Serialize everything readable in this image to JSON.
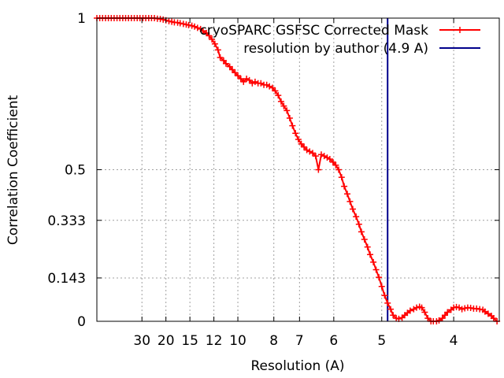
{
  "chart_data": {
    "type": "line",
    "xlabel": "Resolution (A)",
    "ylabel": "Correlation Coefficient",
    "x_scale": "reciprocal",
    "xlim": [
      500,
      3.55
    ],
    "ylim": [
      0,
      1
    ],
    "x_ticks": [
      {
        "value": 30,
        "label": "30"
      },
      {
        "value": 20,
        "label": "20"
      },
      {
        "value": 15,
        "label": "15"
      },
      {
        "value": 12,
        "label": "12"
      },
      {
        "value": 10,
        "label": "10"
      },
      {
        "value": 8,
        "label": "8"
      },
      {
        "value": 7,
        "label": "7"
      },
      {
        "value": 6,
        "label": "6"
      },
      {
        "value": 5,
        "label": "5"
      },
      {
        "value": 4,
        "label": "4"
      }
    ],
    "y_ticks": [
      {
        "value": 0,
        "label": "0"
      },
      {
        "value": 0.143,
        "label": "0.143"
      },
      {
        "value": 0.333,
        "label": "0.333"
      },
      {
        "value": 0.5,
        "label": "0.5"
      },
      {
        "value": 1,
        "label": "1"
      }
    ],
    "grid": true,
    "legend_position": "top-right",
    "series": [
      {
        "name": "cryoSPARC GSFSC Corrected Mask",
        "color": "#ff0000",
        "marker": "plus",
        "x": [
          500,
          250,
          166.7,
          125,
          100,
          83.3,
          71.4,
          62.5,
          55.6,
          50,
          45.5,
          41.7,
          38.5,
          35.7,
          33.3,
          31.3,
          29.4,
          27.8,
          26.3,
          25,
          23.8,
          22.7,
          21.7,
          20.8,
          20,
          19.2,
          18.5,
          17.9,
          17.2,
          16.7,
          16.1,
          15.6,
          15.2,
          14.7,
          14.3,
          13.9,
          13.5,
          13.2,
          12.8,
          12.5,
          12.2,
          11.9,
          11.6,
          11.4,
          11.1,
          10.9,
          10.6,
          10.4,
          10.2,
          10,
          9.8,
          9.62,
          9.43,
          9.26,
          9.09,
          8.93,
          8.77,
          8.62,
          8.47,
          8.33,
          8.2,
          8.06,
          7.94,
          7.81,
          7.69,
          7.58,
          7.46,
          7.35,
          7.25,
          7.14,
          7.04,
          6.94,
          6.85,
          6.76,
          6.67,
          6.58,
          6.49,
          6.41,
          6.33,
          6.25,
          6.17,
          6.1,
          6.02,
          5.95,
          5.88,
          5.81,
          5.75,
          5.68,
          5.62,
          5.56,
          5.49,
          5.43,
          5.38,
          5.32,
          5.26,
          5.21,
          5.15,
          5.1,
          5.05,
          5,
          4.95,
          4.9,
          4.85,
          4.81,
          4.76,
          4.72,
          4.67,
          4.63,
          4.59,
          4.55,
          4.5,
          4.46,
          4.42,
          4.39,
          4.35,
          4.31,
          4.27,
          4.24,
          4.2,
          4.17,
          4.13,
          4.1,
          4.07,
          4.03,
          4,
          3.97,
          3.94,
          3.91,
          3.88,
          3.85,
          3.82,
          3.79,
          3.76,
          3.73,
          3.7,
          3.68,
          3.65,
          3.62,
          3.6,
          3.57
        ],
        "y": [
          1.0,
          1.0,
          1.0,
          1.0,
          1.0,
          1.0,
          1.0,
          1.0,
          1.0,
          1.0,
          1.0,
          1.0,
          1.0,
          1.0,
          1.0,
          1.0,
          1.0,
          1.0,
          1.0,
          1.0,
          1.0,
          0.998,
          0.997,
          0.995,
          0.993,
          0.99,
          0.988,
          0.986,
          0.985,
          0.983,
          0.981,
          0.979,
          0.977,
          0.975,
          0.972,
          0.968,
          0.964,
          0.958,
          0.951,
          0.942,
          0.93,
          0.915,
          0.895,
          0.87,
          0.86,
          0.85,
          0.84,
          0.83,
          0.82,
          0.81,
          0.8,
          0.79,
          0.8,
          0.795,
          0.785,
          0.79,
          0.785,
          0.785,
          0.78,
          0.78,
          0.775,
          0.77,
          0.76,
          0.745,
          0.725,
          0.71,
          0.695,
          0.67,
          0.645,
          0.62,
          0.6,
          0.585,
          0.575,
          0.565,
          0.56,
          0.555,
          0.545,
          0.5,
          0.55,
          0.545,
          0.54,
          0.535,
          0.525,
          0.515,
          0.5,
          0.475,
          0.445,
          0.42,
          0.395,
          0.37,
          0.345,
          0.32,
          0.295,
          0.27,
          0.245,
          0.22,
          0.195,
          0.17,
          0.145,
          0.115,
          0.085,
          0.06,
          0.04,
          0.02,
          0.01,
          0.008,
          0.012,
          0.02,
          0.028,
          0.035,
          0.04,
          0.045,
          0.048,
          0.045,
          0.03,
          0.01,
          0.0,
          0.0,
          0.0,
          0.003,
          0.01,
          0.02,
          0.03,
          0.038,
          0.045,
          0.047,
          0.045,
          0.04,
          0.043,
          0.045,
          0.044,
          0.042,
          0.042,
          0.04,
          0.038,
          0.032,
          0.025,
          0.018,
          0.01,
          0.0
        ]
      },
      {
        "name": "resolution by author (4.9 A)",
        "color": "#00008b",
        "marker": "none",
        "x": [
          4.9,
          4.9
        ],
        "y": [
          0,
          1
        ]
      }
    ]
  }
}
